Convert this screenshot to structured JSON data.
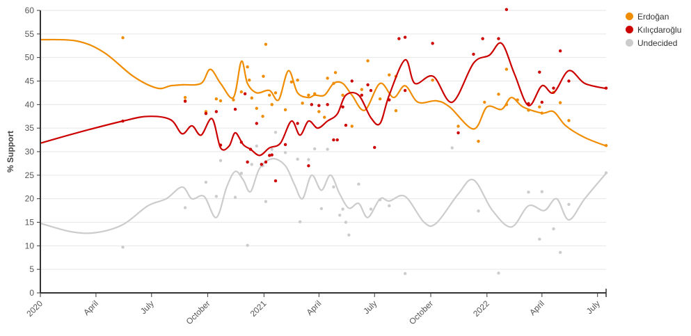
{
  "chart_data": {
    "type": "scatter",
    "title": "",
    "ylabel": "% Support",
    "xlabel": "",
    "ylim": [
      0,
      60
    ],
    "yticks": [
      0,
      5,
      10,
      15,
      20,
      25,
      30,
      35,
      40,
      45,
      50,
      55,
      60
    ],
    "xlim": [
      "2020-01-01",
      "2022-07-15"
    ],
    "xticks": [
      {
        "date": "2020-01-01",
        "label": "2020"
      },
      {
        "date": "2020-04-01",
        "label": "April"
      },
      {
        "date": "2020-07-01",
        "label": "July"
      },
      {
        "date": "2020-10-01",
        "label": "October"
      },
      {
        "date": "2021-01-01",
        "label": "2021"
      },
      {
        "date": "2021-04-01",
        "label": "April"
      },
      {
        "date": "2021-07-01",
        "label": "July"
      },
      {
        "date": "2021-10-01",
        "label": "October"
      },
      {
        "date": "2022-01-01",
        "label": "2022"
      },
      {
        "date": "2022-04-01",
        "label": "April"
      },
      {
        "date": "2022-07-01",
        "label": "July"
      }
    ],
    "grid": true,
    "legend_position": "top-right",
    "series": [
      {
        "name": "Erdoğan",
        "color": "#f08c00",
        "points": [
          [
            "2020-05-15",
            54.2
          ],
          [
            "2020-08-25",
            41.5
          ],
          [
            "2020-08-25",
            40.8
          ],
          [
            "2020-09-28",
            38.5
          ],
          [
            "2020-10-15",
            41.2
          ],
          [
            "2020-10-22",
            40.8
          ],
          [
            "2020-11-12",
            41.0
          ],
          [
            "2020-11-25",
            42.7
          ],
          [
            "2020-12-05",
            48.0
          ],
          [
            "2020-12-08",
            45.2
          ],
          [
            "2020-12-12",
            41.4
          ],
          [
            "2020-12-20",
            39.2
          ],
          [
            "2020-12-30",
            37.5
          ],
          [
            "2020-12-31",
            46.0
          ],
          [
            "2021-01-04",
            52.8
          ],
          [
            "2021-01-10",
            42.0
          ],
          [
            "2021-01-14",
            40.0
          ],
          [
            "2021-01-20",
            42.5
          ],
          [
            "2021-02-05",
            38.9
          ],
          [
            "2021-02-15",
            44.8
          ],
          [
            "2021-02-25",
            45.2
          ],
          [
            "2021-03-05",
            40.3
          ],
          [
            "2021-03-15",
            42.0
          ],
          [
            "2021-03-25",
            42.3
          ],
          [
            "2021-04-01",
            38.5
          ],
          [
            "2021-04-10",
            37.3
          ],
          [
            "2021-04-15",
            45.6
          ],
          [
            "2021-04-25",
            44.5
          ],
          [
            "2021-04-28",
            46.8
          ],
          [
            "2021-05-10",
            42.0
          ],
          [
            "2021-05-25",
            35.4
          ],
          [
            "2021-06-10",
            43.2
          ],
          [
            "2021-06-20",
            49.3
          ],
          [
            "2021-07-10",
            41.2
          ],
          [
            "2021-07-25",
            46.3
          ],
          [
            "2021-08-05",
            38.7
          ],
          [
            "2021-08-05",
            46.0
          ],
          [
            "2021-10-04",
            45.2
          ],
          [
            "2021-11-15",
            35.4
          ],
          [
            "2021-12-18",
            32.2
          ],
          [
            "2021-12-28",
            40.5
          ],
          [
            "2022-01-20",
            42.2
          ],
          [
            "2022-02-02",
            47.5
          ],
          [
            "2022-02-02",
            40.0
          ],
          [
            "2022-02-20",
            41.0
          ],
          [
            "2022-03-10",
            38.8
          ],
          [
            "2022-03-28",
            39.5
          ],
          [
            "2022-04-01",
            38.2
          ],
          [
            "2022-04-20",
            42.6
          ],
          [
            "2022-05-01",
            40.4
          ],
          [
            "2022-05-15",
            36.6
          ],
          [
            "2022-07-15",
            31.3
          ]
        ],
        "trend": [
          [
            "2020-01-01",
            53.8
          ],
          [
            "2020-03-01",
            53.5
          ],
          [
            "2020-04-15",
            51.0
          ],
          [
            "2020-06-01",
            46.0
          ],
          [
            "2020-07-10",
            43.5
          ],
          [
            "2020-08-01",
            44.0
          ],
          [
            "2020-08-20",
            44.2
          ],
          [
            "2020-09-20",
            44.5
          ],
          [
            "2020-10-05",
            47.5
          ],
          [
            "2020-10-22",
            44.5
          ],
          [
            "2020-11-12",
            41.5
          ],
          [
            "2020-11-25",
            49.2
          ],
          [
            "2020-12-05",
            44.5
          ],
          [
            "2020-12-20",
            42.5
          ],
          [
            "2021-01-10",
            43.0
          ],
          [
            "2021-01-25",
            41.0
          ],
          [
            "2021-02-10",
            47.2
          ],
          [
            "2021-02-25",
            42.5
          ],
          [
            "2021-03-15",
            41.5
          ],
          [
            "2021-03-25",
            42.0
          ],
          [
            "2021-04-10",
            42.0
          ],
          [
            "2021-04-25",
            44.5
          ],
          [
            "2021-05-10",
            44.5
          ],
          [
            "2021-05-25",
            42.0
          ],
          [
            "2021-06-15",
            38.8
          ],
          [
            "2021-07-10",
            44.5
          ],
          [
            "2021-08-01",
            41.5
          ],
          [
            "2021-08-20",
            44.0
          ],
          [
            "2021-09-10",
            40.5
          ],
          [
            "2021-10-10",
            40.8
          ],
          [
            "2021-11-01",
            39.5
          ],
          [
            "2021-12-10",
            34.8
          ],
          [
            "2022-01-01",
            39.5
          ],
          [
            "2022-01-25",
            39.0
          ],
          [
            "2022-02-10",
            41.5
          ],
          [
            "2022-03-01",
            39.5
          ],
          [
            "2022-04-01",
            38.2
          ],
          [
            "2022-04-20",
            38.5
          ],
          [
            "2022-05-10",
            35.5
          ],
          [
            "2022-06-10",
            33.0
          ],
          [
            "2022-07-15",
            31.2
          ]
        ]
      },
      {
        "name": "Kılıçdaroğlu",
        "color": "#cc0000",
        "points": [
          [
            "2020-05-15",
            36.5
          ],
          [
            "2020-08-25",
            40.7
          ],
          [
            "2020-09-28",
            38.1
          ],
          [
            "2020-10-15",
            38.5
          ],
          [
            "2020-10-22",
            31.4
          ],
          [
            "2020-11-15",
            39.0
          ],
          [
            "2020-11-25",
            32.0
          ],
          [
            "2020-12-01",
            42.3
          ],
          [
            "2020-12-05",
            27.8
          ],
          [
            "2020-12-10",
            30.5
          ],
          [
            "2020-12-20",
            36.0
          ],
          [
            "2020-12-28",
            27.3
          ],
          [
            "2021-01-04",
            27.8
          ],
          [
            "2021-01-10",
            29.2
          ],
          [
            "2021-01-14",
            29.3
          ],
          [
            "2021-01-20",
            23.8
          ],
          [
            "2021-02-05",
            31.5
          ],
          [
            "2021-02-25",
            36.0
          ],
          [
            "2021-03-15",
            27.0
          ],
          [
            "2021-03-20",
            40.0
          ],
          [
            "2021-04-01",
            39.8
          ],
          [
            "2021-04-15",
            40.0
          ],
          [
            "2021-04-25",
            32.5
          ],
          [
            "2021-05-01",
            32.5
          ],
          [
            "2021-05-10",
            39.5
          ],
          [
            "2021-05-15",
            35.6
          ],
          [
            "2021-05-25",
            45.0
          ],
          [
            "2021-06-10",
            42.0
          ],
          [
            "2021-06-20",
            44.2
          ],
          [
            "2021-06-25",
            43.0
          ],
          [
            "2021-07-01",
            30.9
          ],
          [
            "2021-07-25",
            41.0
          ],
          [
            "2021-08-10",
            54.0
          ],
          [
            "2021-08-20",
            54.3
          ],
          [
            "2021-08-20",
            43.0
          ],
          [
            "2021-10-04",
            53.0
          ],
          [
            "2021-11-15",
            34.0
          ],
          [
            "2021-12-10",
            50.7
          ],
          [
            "2021-12-25",
            54.0
          ],
          [
            "2022-01-20",
            54.0
          ],
          [
            "2022-02-02",
            60.2
          ],
          [
            "2022-03-10",
            40.2
          ],
          [
            "2022-03-28",
            46.9
          ],
          [
            "2022-04-01",
            40.5
          ],
          [
            "2022-04-20",
            43.5
          ],
          [
            "2022-05-01",
            51.4
          ],
          [
            "2022-05-15",
            45.0
          ],
          [
            "2022-07-15",
            43.5
          ]
        ],
        "trend": [
          [
            "2020-01-01",
            31.8
          ],
          [
            "2020-03-01",
            34.0
          ],
          [
            "2020-05-15",
            36.5
          ],
          [
            "2020-06-25",
            37.5
          ],
          [
            "2020-08-01",
            36.8
          ],
          [
            "2020-08-20",
            33.8
          ],
          [
            "2020-09-05",
            35.5
          ],
          [
            "2020-09-20",
            33.5
          ],
          [
            "2020-10-08",
            37.0
          ],
          [
            "2020-10-22",
            30.8
          ],
          [
            "2020-11-05",
            31.2
          ],
          [
            "2020-11-15",
            34.0
          ],
          [
            "2020-11-28",
            31.5
          ],
          [
            "2020-12-10",
            30.5
          ],
          [
            "2020-12-25",
            29.2
          ],
          [
            "2021-01-10",
            30.8
          ],
          [
            "2021-01-28",
            31.8
          ],
          [
            "2021-02-15",
            36.5
          ],
          [
            "2021-03-01",
            33.5
          ],
          [
            "2021-03-15",
            36.5
          ],
          [
            "2021-03-30",
            35.0
          ],
          [
            "2021-04-15",
            36.5
          ],
          [
            "2021-05-01",
            38.0
          ],
          [
            "2021-05-15",
            42.0
          ],
          [
            "2021-06-05",
            42.0
          ],
          [
            "2021-06-25",
            37.2
          ],
          [
            "2021-07-10",
            36.0
          ],
          [
            "2021-07-25",
            42.0
          ],
          [
            "2021-08-20",
            49.5
          ],
          [
            "2021-09-05",
            44.5
          ],
          [
            "2021-10-05",
            46.0
          ],
          [
            "2021-11-05",
            40.5
          ],
          [
            "2021-12-10",
            48.8
          ],
          [
            "2022-01-05",
            50.5
          ],
          [
            "2022-01-25",
            53.0
          ],
          [
            "2022-02-15",
            46.5
          ],
          [
            "2022-03-10",
            39.8
          ],
          [
            "2022-04-01",
            44.0
          ],
          [
            "2022-04-20",
            42.5
          ],
          [
            "2022-05-15",
            47.2
          ],
          [
            "2022-06-10",
            44.5
          ],
          [
            "2022-07-15",
            43.4
          ]
        ]
      },
      {
        "name": "Undecided",
        "color": "#cccccc",
        "points": [
          [
            "2020-05-15",
            9.7
          ],
          [
            "2020-08-25",
            18.1
          ],
          [
            "2020-09-28",
            23.5
          ],
          [
            "2020-10-15",
            20.5
          ],
          [
            "2020-10-22",
            28.1
          ],
          [
            "2020-11-15",
            20.3
          ],
          [
            "2020-11-25",
            25.4
          ],
          [
            "2020-12-05",
            10.1
          ],
          [
            "2020-12-12",
            27.3
          ],
          [
            "2020-12-20",
            31.2
          ],
          [
            "2020-12-30",
            27.0
          ],
          [
            "2021-01-04",
            19.4
          ],
          [
            "2021-01-14",
            30.5
          ],
          [
            "2021-01-20",
            34.1
          ],
          [
            "2021-02-05",
            29.8
          ],
          [
            "2021-02-25",
            28.4
          ],
          [
            "2021-03-01",
            15.1
          ],
          [
            "2021-03-15",
            28.3
          ],
          [
            "2021-03-25",
            30.6
          ],
          [
            "2021-04-05",
            17.9
          ],
          [
            "2021-04-15",
            30.5
          ],
          [
            "2021-04-25",
            22.5
          ],
          [
            "2021-05-05",
            16.5
          ],
          [
            "2021-05-10",
            17.8
          ],
          [
            "2021-05-15",
            15.0
          ],
          [
            "2021-05-20",
            12.3
          ],
          [
            "2021-06-05",
            23.1
          ],
          [
            "2021-06-25",
            17.8
          ],
          [
            "2021-07-10",
            19.8
          ],
          [
            "2021-07-25",
            18.5
          ],
          [
            "2021-08-20",
            4.1
          ],
          [
            "2021-11-05",
            30.8
          ],
          [
            "2021-12-18",
            17.4
          ],
          [
            "2022-01-20",
            4.2
          ],
          [
            "2022-03-10",
            21.4
          ],
          [
            "2022-03-28",
            11.4
          ],
          [
            "2022-04-01",
            21.5
          ],
          [
            "2022-04-20",
            13.6
          ],
          [
            "2022-05-01",
            8.6
          ],
          [
            "2022-05-15",
            18.8
          ],
          [
            "2022-07-15",
            25.5
          ]
        ],
        "trend": [
          [
            "2020-01-01",
            14.8
          ],
          [
            "2020-02-20",
            13.0
          ],
          [
            "2020-04-01",
            12.8
          ],
          [
            "2020-05-15",
            14.5
          ],
          [
            "2020-06-25",
            18.5
          ],
          [
            "2020-07-25",
            20.0
          ],
          [
            "2020-08-20",
            22.5
          ],
          [
            "2020-09-05",
            20.0
          ],
          [
            "2020-09-25",
            20.5
          ],
          [
            "2020-10-15",
            16.0
          ],
          [
            "2020-11-01",
            22.5
          ],
          [
            "2020-11-15",
            25.8
          ],
          [
            "2020-11-28",
            24.0
          ],
          [
            "2020-12-10",
            21.5
          ],
          [
            "2020-12-25",
            26.5
          ],
          [
            "2021-01-15",
            28.5
          ],
          [
            "2021-02-05",
            27.0
          ],
          [
            "2021-02-20",
            23.0
          ],
          [
            "2021-03-05",
            20.0
          ],
          [
            "2021-03-20",
            25.0
          ],
          [
            "2021-04-05",
            21.8
          ],
          [
            "2021-04-20",
            25.0
          ],
          [
            "2021-05-05",
            21.0
          ],
          [
            "2021-05-20",
            18.0
          ],
          [
            "2021-06-05",
            19.0
          ],
          [
            "2021-06-20",
            16.0
          ],
          [
            "2021-07-10",
            20.0
          ],
          [
            "2021-07-25",
            19.5
          ],
          [
            "2021-08-20",
            20.5
          ],
          [
            "2021-09-20",
            15.0
          ],
          [
            "2021-10-10",
            14.8
          ],
          [
            "2021-11-15",
            21.0
          ],
          [
            "2021-12-10",
            24.0
          ],
          [
            "2022-01-10",
            17.5
          ],
          [
            "2022-02-10",
            14.0
          ],
          [
            "2022-03-10",
            18.5
          ],
          [
            "2022-04-05",
            17.5
          ],
          [
            "2022-04-25",
            20.0
          ],
          [
            "2022-05-15",
            15.5
          ],
          [
            "2022-06-10",
            20.0
          ],
          [
            "2022-07-15",
            25.4
          ]
        ]
      }
    ]
  }
}
